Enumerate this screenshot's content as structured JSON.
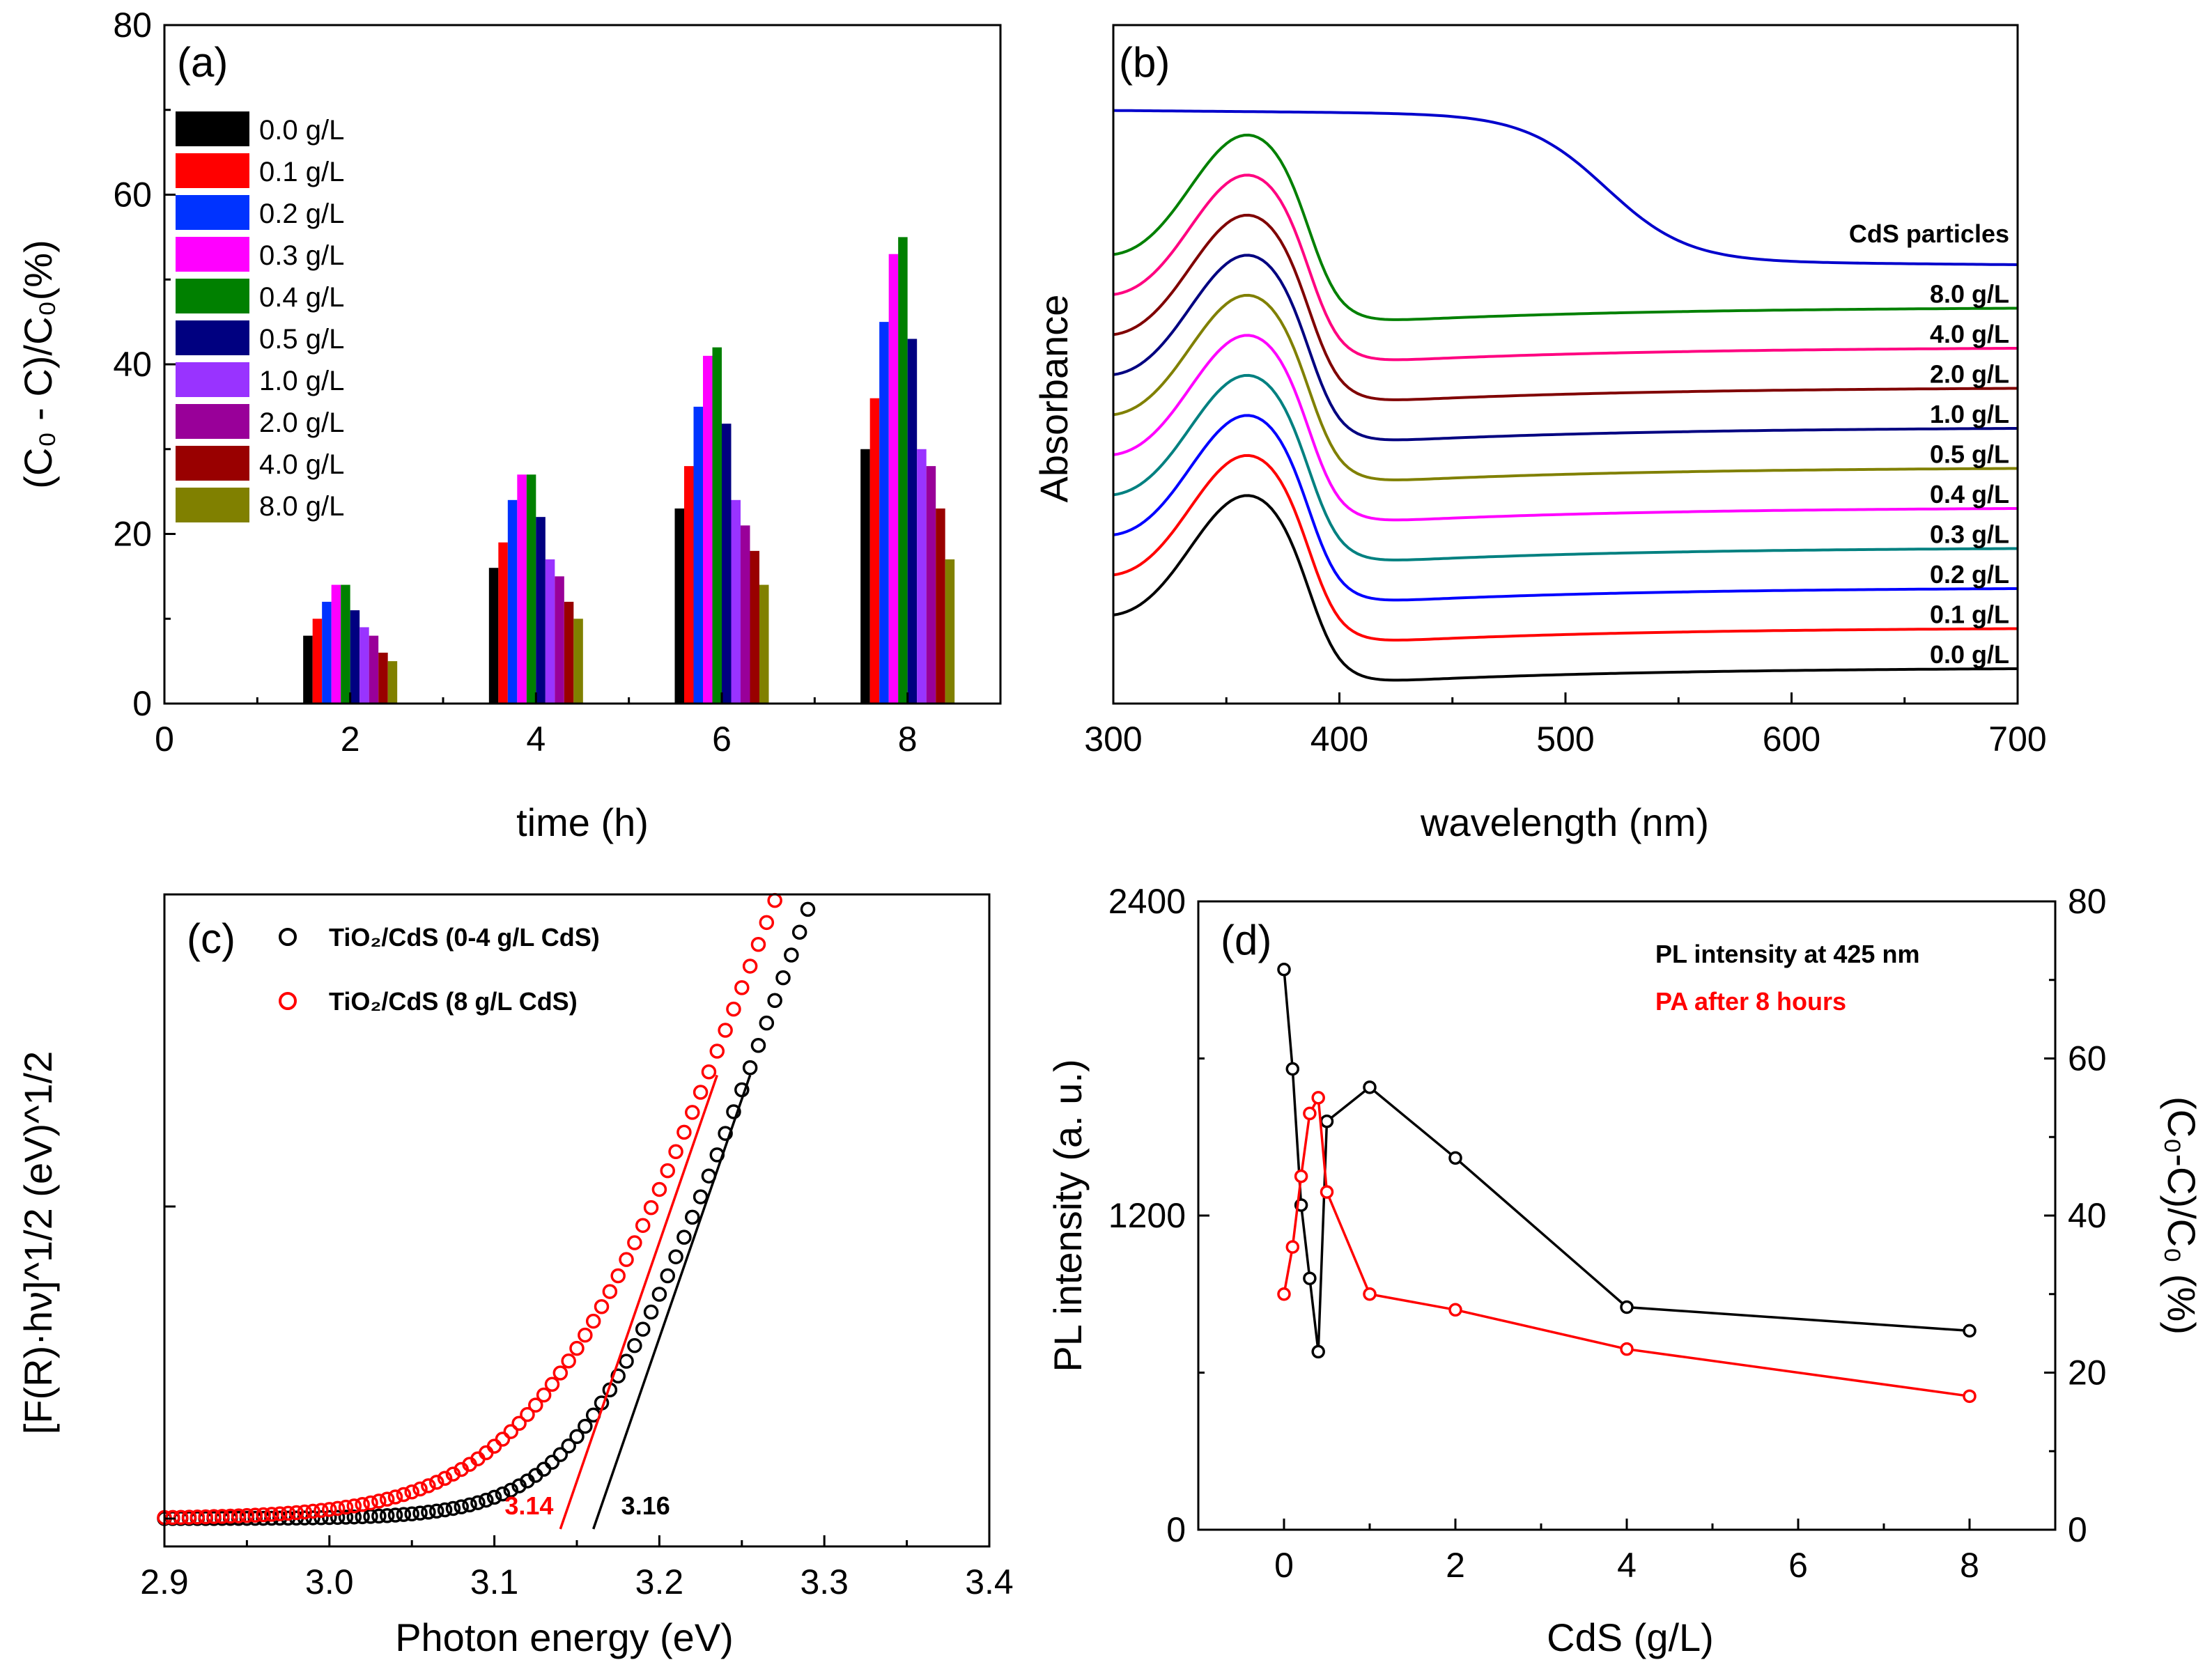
{
  "chart_data": [
    {
      "panel": "(a)",
      "type": "bar",
      "xlabel": "time (h)",
      "ylabel": "(C₀ - C)/C₀(%)",
      "xlim": [
        0,
        9
      ],
      "ylim": [
        0,
        80
      ],
      "xticks": [
        "0",
        "2",
        "4",
        "6",
        "8"
      ],
      "yticks": [
        "0",
        "20",
        "40",
        "60",
        "80"
      ],
      "legend_position": "top-left",
      "categories": [
        2,
        4,
        6,
        8
      ],
      "series": [
        {
          "name": "0.0 g/L",
          "color": "#000000",
          "values": [
            8,
            16,
            23,
            30
          ]
        },
        {
          "name": "0.1 g/L",
          "color": "#ff0000",
          "values": [
            10,
            19,
            28,
            36
          ]
        },
        {
          "name": "0.2 g/L",
          "color": "#0033ff",
          "values": [
            12,
            24,
            35,
            45
          ]
        },
        {
          "name": "0.3 g/L",
          "color": "#ff00ff",
          "values": [
            14,
            27,
            41,
            53
          ]
        },
        {
          "name": "0.4 g/L",
          "color": "#008000",
          "values": [
            14,
            27,
            42,
            55
          ]
        },
        {
          "name": "0.5 g/L",
          "color": "#000080",
          "values": [
            11,
            22,
            33,
            43
          ]
        },
        {
          "name": "1.0 g/L",
          "color": "#9933ff",
          "values": [
            9,
            17,
            24,
            30
          ]
        },
        {
          "name": "2.0 g/L",
          "color": "#990099",
          "values": [
            8,
            15,
            21,
            28
          ]
        },
        {
          "name": "4.0 g/L",
          "color": "#990000",
          "values": [
            6,
            12,
            18,
            23
          ]
        },
        {
          "name": "8.0 g/L",
          "color": "#808000",
          "values": [
            5,
            10,
            14,
            17
          ]
        }
      ]
    },
    {
      "panel": "(b)",
      "type": "line",
      "xlabel": "wavelength (nm)",
      "ylabel": "Absorbance",
      "xlim": [
        300,
        700
      ],
      "xticks": [
        "300",
        "400",
        "500",
        "600",
        "700"
      ],
      "y_offset_step": 1,
      "series": [
        {
          "name": "0.0 g/L",
          "color": "#000000",
          "kind": "tio2",
          "offset": 0
        },
        {
          "name": "0.1 g/L",
          "color": "#ff0000",
          "kind": "tio2",
          "offset": 1
        },
        {
          "name": "0.2 g/L",
          "color": "#0000ff",
          "kind": "tio2",
          "offset": 2
        },
        {
          "name": "0.3 g/L",
          "color": "#008080",
          "kind": "tio2",
          "offset": 3
        },
        {
          "name": "0.4 g/L",
          "color": "#ff00ff",
          "kind": "tio2",
          "offset": 4
        },
        {
          "name": "0.5 g/L",
          "color": "#808000",
          "kind": "tio2",
          "offset": 5
        },
        {
          "name": "1.0 g/L",
          "color": "#000080",
          "kind": "tio2",
          "offset": 6
        },
        {
          "name": "2.0 g/L",
          "color": "#800000",
          "kind": "tio2",
          "offset": 7
        },
        {
          "name": "4.0 g/L",
          "color": "#ff0080",
          "kind": "tio2",
          "offset": 8
        },
        {
          "name": "8.0 g/L",
          "color": "#008000",
          "kind": "tio2",
          "offset": 9
        },
        {
          "name": "CdS particles",
          "color": "#0000cc",
          "kind": "cds",
          "offset": 10
        }
      ]
    },
    {
      "panel": "(c)",
      "type": "scatter",
      "xlabel": "Photon energy (eV)",
      "ylabel": "[F(R)·hν]^1/2 (eV)^1/2",
      "xlim": [
        2.9,
        3.4
      ],
      "xticks": [
        "2.9",
        "3.0",
        "3.1",
        "3.2",
        "3.3",
        "3.4"
      ],
      "legend_position": "top-left",
      "series": [
        {
          "name": "TiO₂/CdS (0-4 g/L CdS)",
          "color": "#000000",
          "band_gap": 3.16,
          "band_gap_label": "3.16"
        },
        {
          "name": "TiO₂/CdS (8 g/L CdS)",
          "color": "#ff0000",
          "band_gap": 3.14,
          "band_gap_label": "3.14"
        }
      ]
    },
    {
      "panel": "(d)",
      "type": "line",
      "xlabel": "CdS (g/L)",
      "ylabel": "PL intensity (a. u.)",
      "ylabel_right": "(C₀-C)/C₀ (%)",
      "xlim": [
        -1,
        9
      ],
      "ylim": [
        0,
        2400
      ],
      "ylim_right": [
        0,
        80
      ],
      "xticks": [
        "0",
        "2",
        "4",
        "6",
        "8"
      ],
      "yticks": [
        "0",
        "1200",
        "2400"
      ],
      "yticks_right": [
        "0",
        "20",
        "40",
        "60",
        "80"
      ],
      "legend_position": "top-right",
      "x": [
        0,
        0.1,
        0.2,
        0.3,
        0.4,
        0.5,
        1.0,
        2.0,
        4.0,
        8.0
      ],
      "series": [
        {
          "name": "PL intensity at 425 nm",
          "color": "#000000",
          "axis": "left",
          "values": [
            2140,
            1760,
            1240,
            960,
            680,
            1560,
            1690,
            1420,
            850,
            760
          ]
        },
        {
          "name": "PA after 8 hours",
          "color": "#ff0000",
          "axis": "right",
          "values": [
            30,
            36,
            45,
            53,
            55,
            43,
            30,
            28,
            23,
            17
          ]
        }
      ]
    }
  ]
}
